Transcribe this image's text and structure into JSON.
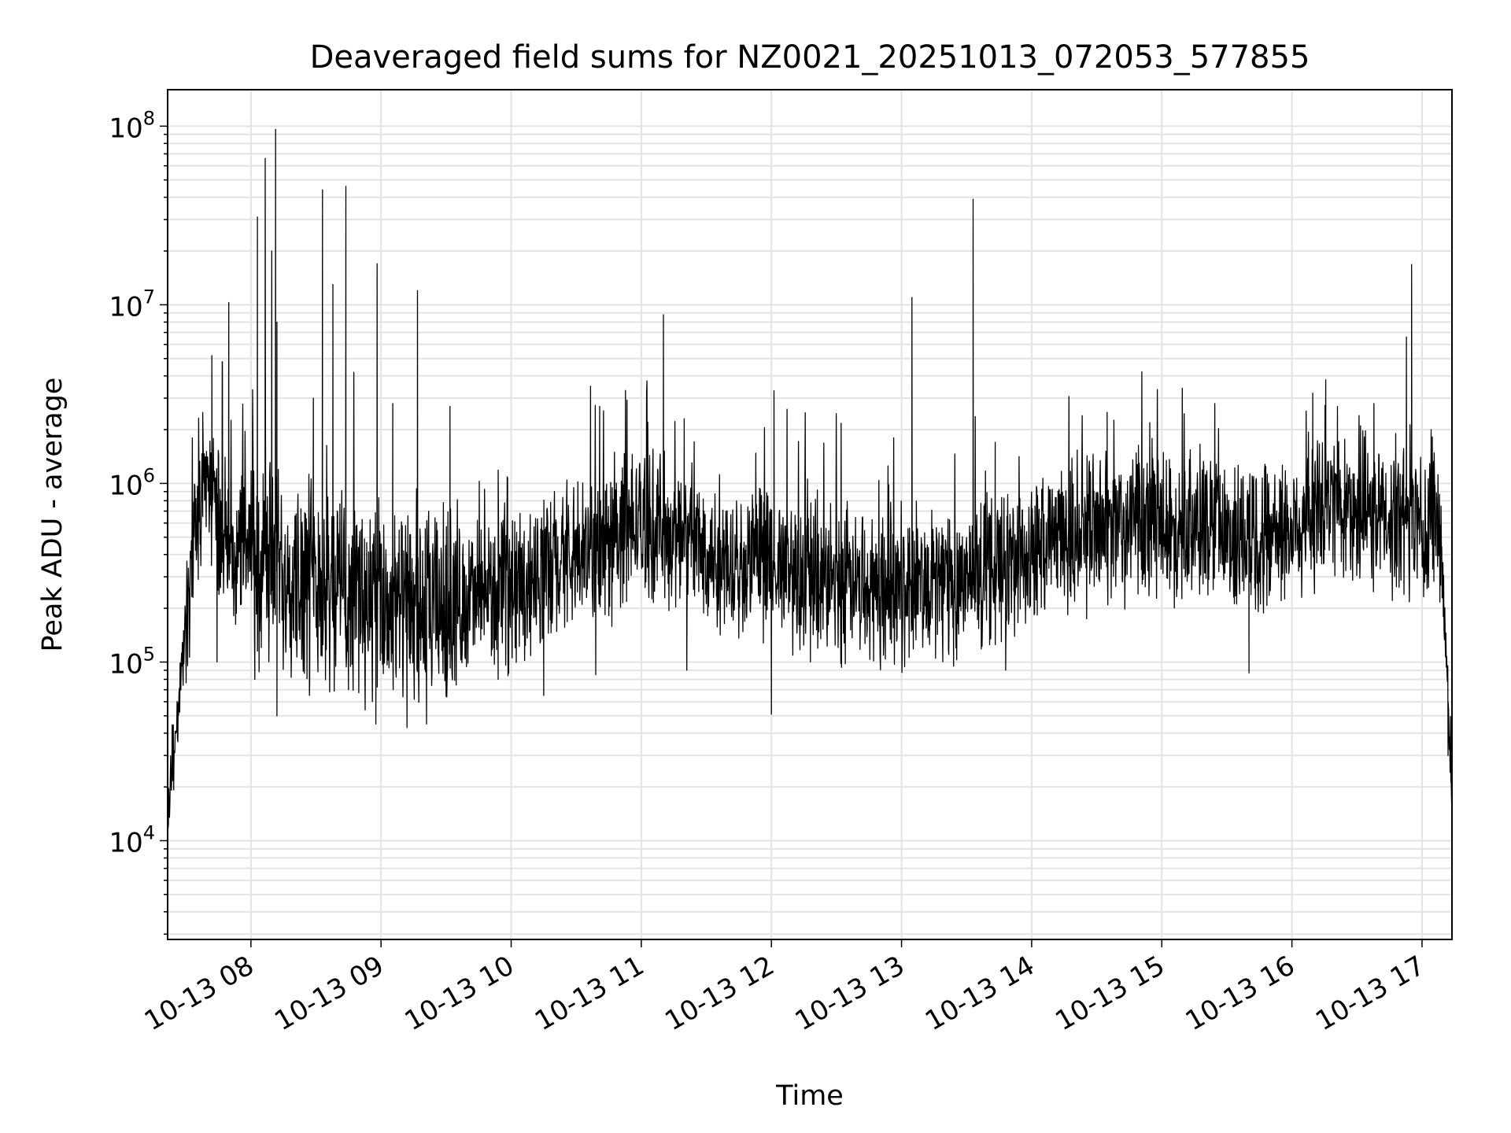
{
  "chart_data": {
    "type": "line",
    "title": "Deaveraged field sums for NZ0021_20251013_072053_577855",
    "xlabel": "Time",
    "ylabel": "Peak ADU - average",
    "yscale": "log",
    "ylim": [
      2800,
      160000000
    ],
    "xlim_hours": [
      7.36,
      17.23
    ],
    "grid": true,
    "line_color": "#000000",
    "grid_color": "#e3e3e3",
    "x_ticks": [
      {
        "hour": 8,
        "label": "10-13 08"
      },
      {
        "hour": 9,
        "label": "10-13 09"
      },
      {
        "hour": 10,
        "label": "10-13 10"
      },
      {
        "hour": 11,
        "label": "10-13 11"
      },
      {
        "hour": 12,
        "label": "10-13 12"
      },
      {
        "hour": 13,
        "label": "10-13 13"
      },
      {
        "hour": 14,
        "label": "10-13 14"
      },
      {
        "hour": 15,
        "label": "10-13 15"
      },
      {
        "hour": 16,
        "label": "10-13 16"
      },
      {
        "hour": 17,
        "label": "10-13 17"
      }
    ],
    "y_ticks": [
      {
        "value": 10000,
        "base": "10",
        "exp": "4"
      },
      {
        "value": 100000,
        "base": "10",
        "exp": "5"
      },
      {
        "value": 1000000,
        "base": "10",
        "exp": "6"
      },
      {
        "value": 10000000,
        "base": "10",
        "exp": "7"
      },
      {
        "value": 100000000,
        "base": "10",
        "exp": "8"
      }
    ],
    "series": [
      {
        "name": "Peak ADU - average",
        "envelope": [
          [
            7.36,
            14000
          ],
          [
            7.42,
            40000
          ],
          [
            7.5,
            150000
          ],
          [
            7.55,
            400000
          ],
          [
            7.6,
            900000
          ],
          [
            7.65,
            1200000
          ],
          [
            7.7,
            800000
          ],
          [
            7.8,
            500000
          ],
          [
            8.0,
            400000
          ],
          [
            8.2,
            350000
          ],
          [
            8.5,
            300000
          ],
          [
            8.8,
            250000
          ],
          [
            9.0,
            200000
          ],
          [
            9.3,
            180000
          ],
          [
            9.6,
            220000
          ],
          [
            10.0,
            260000
          ],
          [
            10.5,
            380000
          ],
          [
            10.8,
            500000
          ],
          [
            11.0,
            600000
          ],
          [
            11.3,
            500000
          ],
          [
            11.6,
            400000
          ],
          [
            12.0,
            330000
          ],
          [
            12.5,
            280000
          ],
          [
            13.0,
            260000
          ],
          [
            13.5,
            300000
          ],
          [
            14.0,
            400000
          ],
          [
            14.5,
            550000
          ],
          [
            15.0,
            600000
          ],
          [
            15.5,
            520000
          ],
          [
            16.0,
            560000
          ],
          [
            16.3,
            800000
          ],
          [
            16.6,
            650000
          ],
          [
            17.0,
            600000
          ],
          [
            17.08,
            700000
          ],
          [
            17.13,
            500000
          ],
          [
            17.17,
            200000
          ],
          [
            17.2,
            60000
          ],
          [
            17.23,
            20000
          ]
        ],
        "spikes": [
          [
            7.55,
            1800000
          ],
          [
            7.63,
            2500000
          ],
          [
            7.7,
            5200000
          ],
          [
            7.78,
            4800000
          ],
          [
            7.83,
            10300000
          ],
          [
            8.05,
            31000000
          ],
          [
            8.11,
            66000000
          ],
          [
            8.16,
            20000000
          ],
          [
            8.19,
            96000000
          ],
          [
            8.2,
            8000000
          ],
          [
            8.48,
            3000000
          ],
          [
            8.55,
            44000000
          ],
          [
            8.63,
            13000000
          ],
          [
            8.73,
            46000000
          ],
          [
            8.97,
            17000000
          ],
          [
            9.09,
            2800000
          ],
          [
            9.28,
            12000000
          ],
          [
            9.53,
            2700000
          ],
          [
            10.61,
            3500000
          ],
          [
            10.68,
            2700000
          ],
          [
            11.05,
            2200000
          ],
          [
            11.17,
            8800000
          ],
          [
            11.33,
            2300000
          ],
          [
            12.02,
            3300000
          ],
          [
            12.12,
            2600000
          ],
          [
            13.08,
            11000000
          ],
          [
            13.55,
            39000000
          ],
          [
            13.72,
            1700000
          ],
          [
            14.58,
            2500000
          ],
          [
            16.16,
            3200000
          ],
          [
            16.26,
            3800000
          ],
          [
            16.35,
            2700000
          ],
          [
            16.63,
            2800000
          ],
          [
            16.88,
            6600000
          ],
          [
            16.92,
            16800000
          ],
          [
            17.07,
            2000000
          ]
        ],
        "dips": [
          [
            7.74,
            100000
          ],
          [
            8.03,
            80000
          ],
          [
            8.2,
            50000
          ],
          [
            8.45,
            65000
          ],
          [
            8.75,
            70000
          ],
          [
            8.96,
            45000
          ],
          [
            9.2,
            43000
          ],
          [
            9.35,
            45000
          ],
          [
            9.9,
            80000
          ],
          [
            10.25,
            65000
          ],
          [
            10.65,
            85000
          ],
          [
            11.35,
            90000
          ],
          [
            12.0,
            51000
          ],
          [
            12.3,
            100000
          ],
          [
            13.4,
            95000
          ],
          [
            13.8,
            90000
          ],
          [
            15.67,
            87000
          ],
          [
            17.2,
            30000
          ]
        ]
      }
    ]
  }
}
